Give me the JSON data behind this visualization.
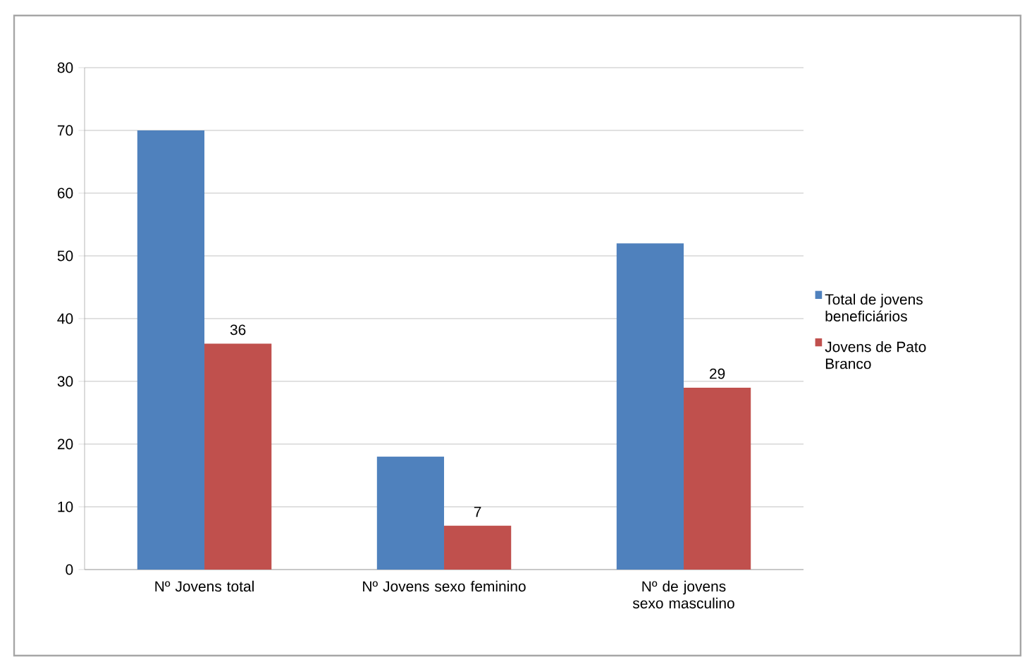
{
  "chart_data": {
    "type": "bar",
    "categories": [
      "Nº Jovens total",
      "Nº Jovens sexo feminino",
      "Nº de jovens sexo masculino"
    ],
    "series": [
      {
        "name": "Total de jovens beneficiários",
        "color": "#4f81bd",
        "values": [
          70,
          18,
          52
        ]
      },
      {
        "name": "Jovens de Pato Branco",
        "color": "#c0504d",
        "values": [
          36,
          7,
          29
        ],
        "value_labels": [
          "36",
          "7",
          "29"
        ]
      }
    ],
    "ylim": [
      0,
      80
    ],
    "yticks": [
      0,
      10,
      20,
      30,
      40,
      50,
      60,
      70,
      80
    ],
    "grid": "y",
    "legend": "right"
  }
}
